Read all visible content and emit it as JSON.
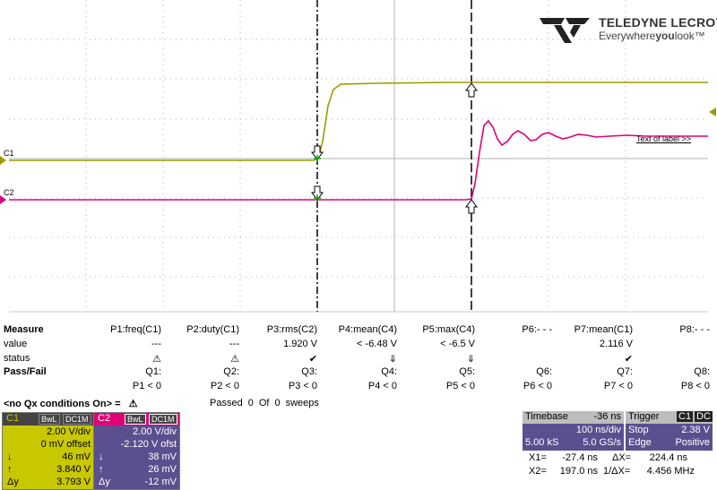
{
  "brand": {
    "name": "TELEDYNE LECROY",
    "tag_pre": "Everywhere",
    "tag_bold": "you",
    "tag_post": "look",
    "tm": "™"
  },
  "channels": {
    "c1": {
      "label": "C1",
      "color": "#9c9c00"
    },
    "c2": {
      "label": "C2",
      "color": "#e0007a"
    }
  },
  "annotation": "Text of label >>",
  "measure": {
    "row_labels": {
      "measure": "Measure",
      "value": "value",
      "status": "status",
      "passfail": "Pass/Fail"
    },
    "params": [
      "P1:freq(C1)",
      "P2:duty(C1)",
      "P3:rms(C2)",
      "P4:mean(C4)",
      "P5:max(C4)",
      "P6:- - -",
      "P7:mean(C1)",
      "P8:- - -"
    ],
    "values": [
      "---",
      "---",
      "1.920 V",
      "< -6.48 V",
      "< -6.5 V",
      "",
      "2.116 V",
      ""
    ],
    "status": [
      "⚠",
      "⚠",
      "✔",
      "⇓",
      "⇓",
      "",
      "✔",
      ""
    ],
    "q_labels": [
      "Q1:",
      "Q2:",
      "Q3:",
      "Q4:",
      "Q5:",
      "Q6:",
      "Q7:",
      "Q8:"
    ],
    "q_conditions": [
      "P1 < 0",
      "P2 < 0",
      "P3 < 0",
      "P4 < 0",
      "P5 < 0",
      "P6 < 0",
      "P7 < 0",
      "P8 < 0"
    ]
  },
  "qx": {
    "text": "<no Qx conditions On> =",
    "icon": "⚠"
  },
  "pass": {
    "label": "Passed",
    "passed": "0",
    "of": "Of",
    "total": "0",
    "unit": "sweeps"
  },
  "c1_box": {
    "name": "C1",
    "bwl": "BwL",
    "coupling": "DC1M",
    "vdiv": "2.00 V/div",
    "offset": "0 mV offset",
    "down_sym": "↓",
    "down_val": "46 mV",
    "up_sym": "↑",
    "up_val": "3.840 V",
    "dy_sym": "Δy",
    "dy_val": "3.793 V"
  },
  "c2_box": {
    "name": "C2",
    "bwl": "BwL",
    "coupling": "DC1M",
    "vdiv": "2.00 V/div",
    "offset": "-2.120 V ofst",
    "down_sym": "↓",
    "down_val": "38 mV",
    "up_sym": "↑",
    "up_val": "26 mV",
    "dy_sym": "Δy",
    "dy_val": "-12 mV"
  },
  "timebase": {
    "label": "Timebase",
    "delay": "-36 ns",
    "tdiv": "100 ns/div",
    "samples": "5.00 kS",
    "rate": "5.0 GS/s"
  },
  "trigger": {
    "label": "Trigger",
    "src": "C1",
    "coupling": "DC",
    "mode": "Stop",
    "level": "2.38 V",
    "type": "Edge",
    "slope": "Positive"
  },
  "cursors": {
    "x1_label": "X1=",
    "x1": "-27.4 ns",
    "dx_label": "ΔX=",
    "dx": "224.4 ns",
    "x2_label": "X2=",
    "x2": "197.0 ns",
    "inv_label": "1/ΔX=",
    "inv": "4.456 MHz"
  }
}
